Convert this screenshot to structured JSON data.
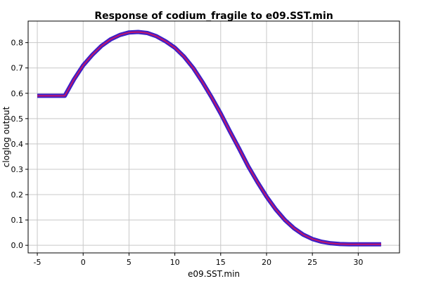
{
  "chart_data": {
    "type": "line",
    "title": "Response of codium_fragile to e09.SST.min",
    "xlabel": "e09.SST.min",
    "ylabel": "cloglog output",
    "xlim": [
      -6,
      34.5
    ],
    "ylim": [
      -0.03,
      0.885
    ],
    "x_ticks": [
      -5,
      0,
      5,
      10,
      15,
      20,
      25,
      30
    ],
    "y_ticks": [
      0.0,
      0.1,
      0.2,
      0.3,
      0.4,
      0.5,
      0.6,
      0.7,
      0.8
    ],
    "x_tick_labels": [
      "-5",
      "0",
      "5",
      "10",
      "15",
      "20",
      "25",
      "30"
    ],
    "y_tick_labels": [
      "0.0",
      "0.1",
      "0.2",
      "0.3",
      "0.4",
      "0.5",
      "0.6",
      "0.7",
      "0.8"
    ],
    "grid": true,
    "series": [
      {
        "color": "#c0166b",
        "band_color": "#3a1fc9",
        "x": [
          -5,
          -4,
          -3,
          -2,
          -1,
          0,
          1,
          2,
          3,
          4,
          5,
          6,
          7,
          8,
          9,
          10,
          11,
          12,
          13,
          14,
          15,
          16,
          17,
          18,
          19,
          20,
          21,
          22,
          23,
          24,
          25,
          26,
          27,
          28,
          29,
          30,
          31,
          32.5
        ],
        "y": [
          0.59,
          0.59,
          0.59,
          0.59,
          0.655,
          0.71,
          0.752,
          0.787,
          0.813,
          0.83,
          0.84,
          0.842,
          0.838,
          0.825,
          0.805,
          0.78,
          0.745,
          0.7,
          0.645,
          0.585,
          0.52,
          0.45,
          0.382,
          0.312,
          0.25,
          0.192,
          0.142,
          0.1,
          0.067,
          0.042,
          0.025,
          0.014,
          0.008,
          0.005,
          0.004,
          0.004,
          0.004,
          0.004
        ]
      }
    ]
  }
}
